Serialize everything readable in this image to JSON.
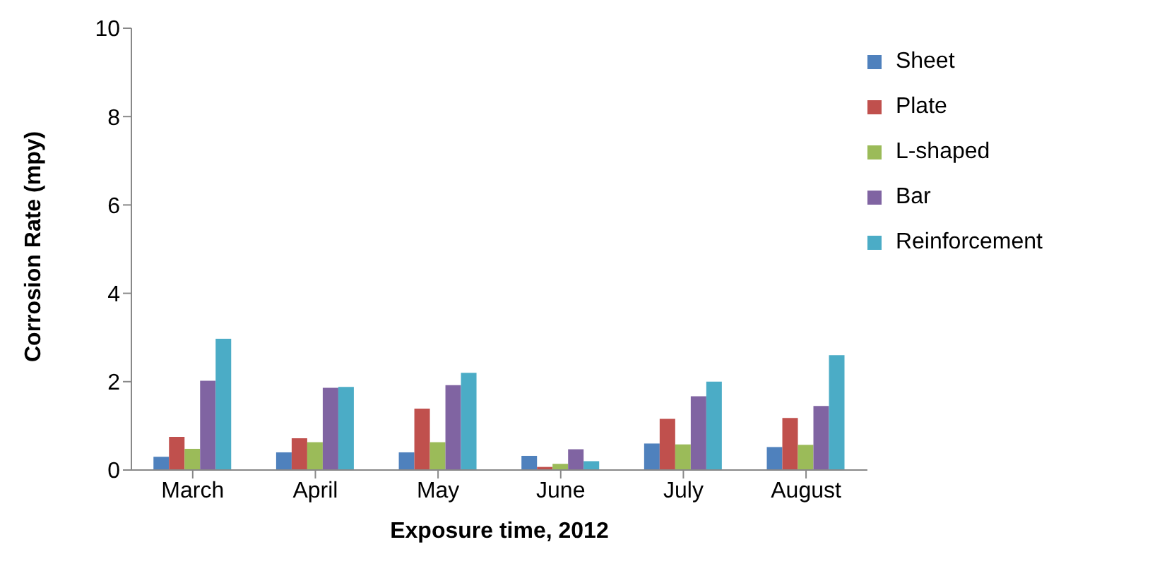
{
  "chart_data": {
    "type": "bar",
    "xlabel": "Exposure time, 2012",
    "ylabel": "Corrosion Rate (mpy)",
    "categories": [
      "March",
      "April",
      "May",
      "June",
      "July",
      "August"
    ],
    "series": [
      {
        "name": "Sheet",
        "color": "#4f81bd",
        "values": [
          0.3,
          0.4,
          0.4,
          0.32,
          0.6,
          0.52
        ]
      },
      {
        "name": "Plate",
        "color": "#c0504d",
        "values": [
          0.75,
          0.72,
          1.39,
          0.07,
          1.16,
          1.18
        ]
      },
      {
        "name": "L-shaped",
        "color": "#9bbb59",
        "values": [
          0.48,
          0.63,
          0.63,
          0.14,
          0.58,
          0.57
        ]
      },
      {
        "name": "Bar",
        "color": "#8064a2",
        "values": [
          2.02,
          1.86,
          1.92,
          0.47,
          1.67,
          1.45
        ]
      },
      {
        "name": "Reinforcement",
        "color": "#4bacc6",
        "values": [
          2.97,
          1.88,
          2.2,
          0.2,
          2.0,
          2.6
        ]
      }
    ],
    "ylim": [
      0,
      10
    ],
    "yticks": [
      0,
      2,
      4,
      6,
      8,
      10
    ],
    "grid": false,
    "legend": "top right"
  }
}
